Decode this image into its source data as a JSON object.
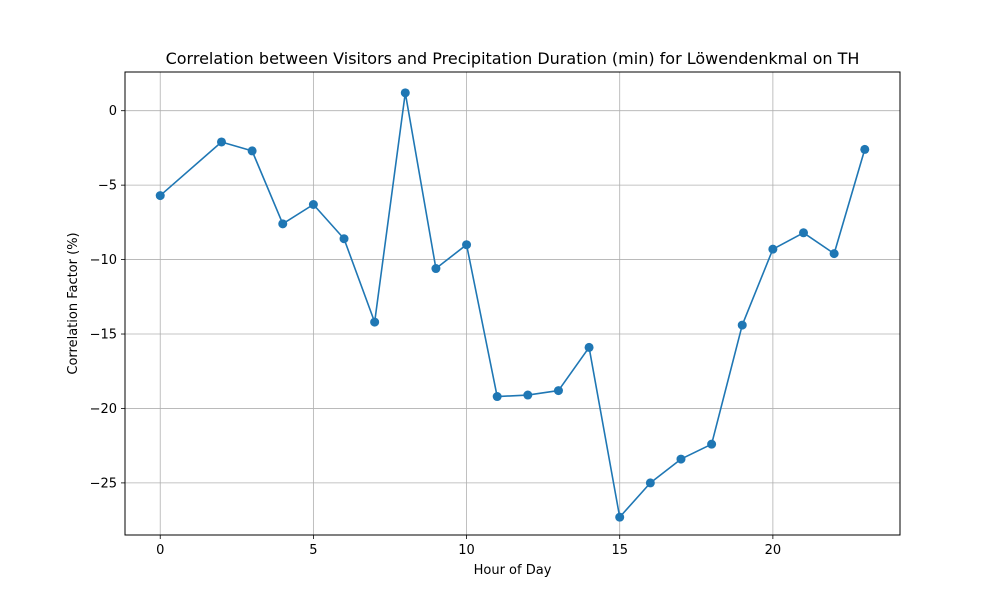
{
  "chart_data": {
    "type": "line",
    "title": "Correlation between Visitors and Precipitation Duration (min) for Löwendenkmal on TH",
    "xlabel": "Hour of Day",
    "ylabel": "Correlation Factor (%)",
    "xlim": [
      -1.15,
      24.15
    ],
    "ylim": [
      -28.5,
      2.6
    ],
    "xticks": [
      0,
      5,
      10,
      15,
      20
    ],
    "yticks": [
      0,
      -5,
      -10,
      -15,
      -20,
      -25
    ],
    "grid": true,
    "marker": "circle",
    "color": "#1f77b4",
    "series": [
      {
        "x": [
          0,
          2,
          3,
          4,
          5,
          6,
          7,
          8,
          9,
          10,
          11,
          12,
          13,
          14,
          15,
          16,
          17,
          18,
          19,
          20,
          21,
          22,
          23
        ],
        "y": [
          -5.7,
          -2.1,
          -2.7,
          -7.6,
          -6.3,
          -8.6,
          -14.2,
          1.2,
          -10.6,
          -9.0,
          -19.2,
          -19.1,
          -18.8,
          -15.9,
          -27.3,
          -25.0,
          -23.4,
          -22.4,
          -14.4,
          -9.3,
          -8.2,
          -9.6,
          -2.6
        ]
      }
    ]
  }
}
